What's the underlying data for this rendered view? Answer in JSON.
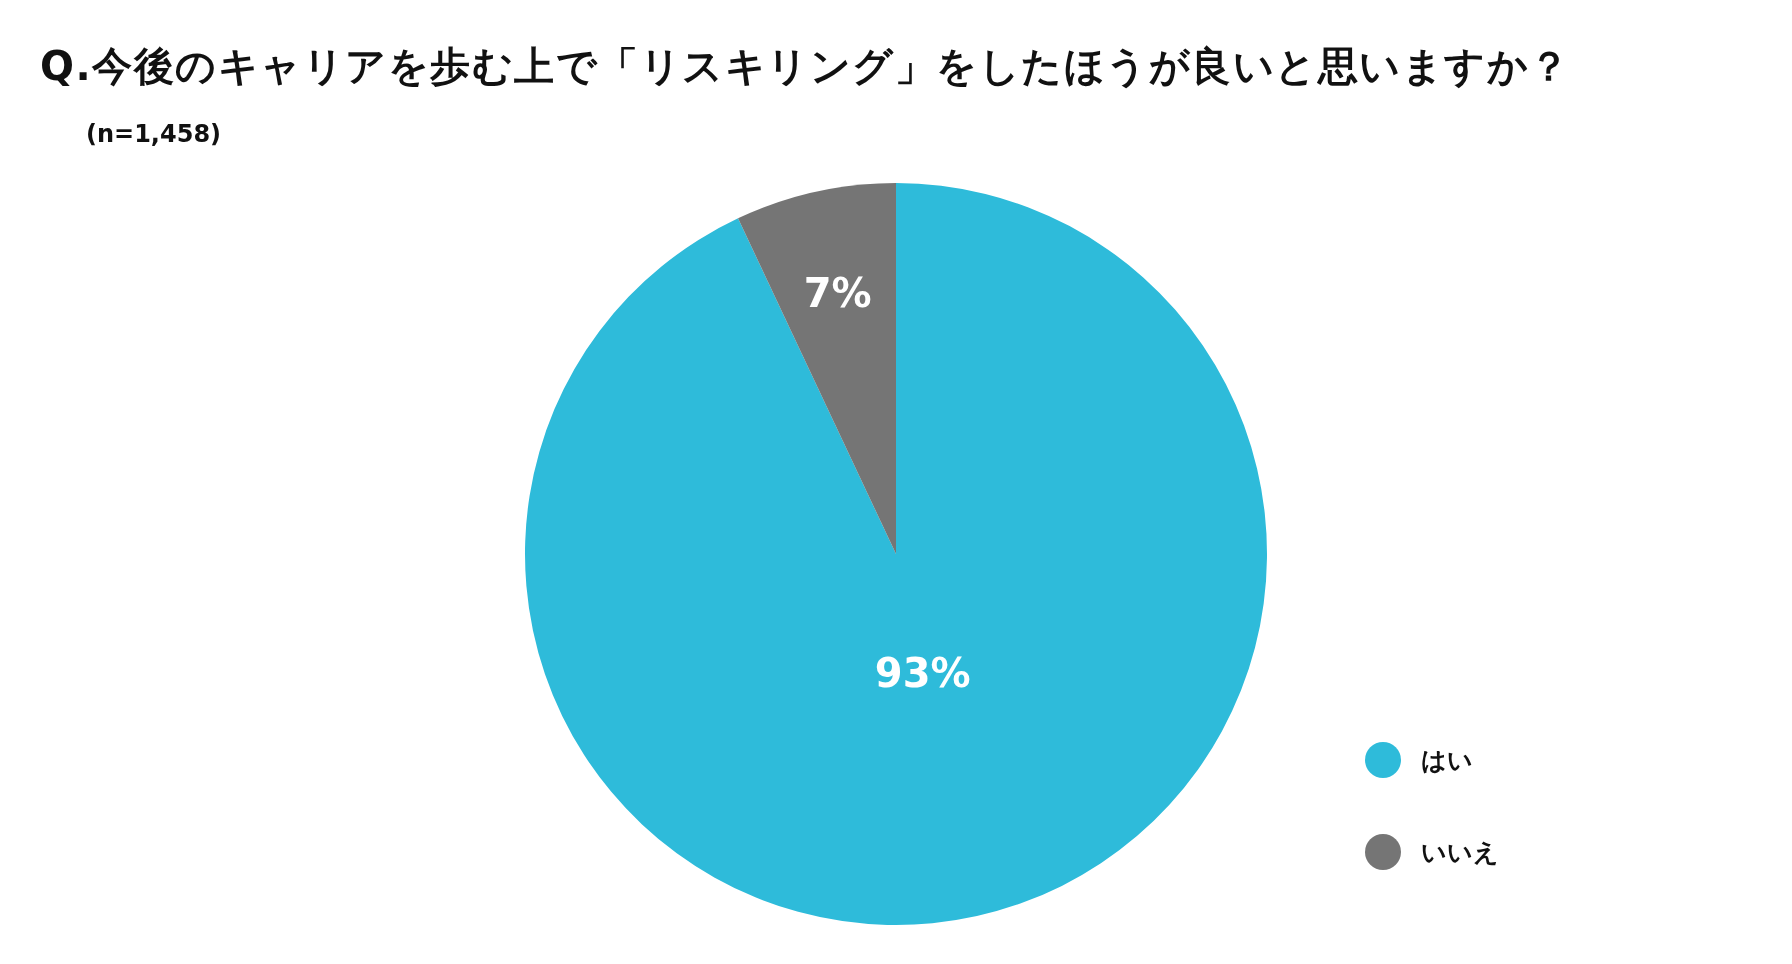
{
  "chart_data": {
    "type": "pie",
    "title": "Q.今後のキャリアを歩む上で「リスキリング」をしたほうが良いと思いますか？",
    "subtitle": "(n=1,458)",
    "categories": [
      "はい",
      "いいえ"
    ],
    "values": [
      93,
      7
    ],
    "value_labels": [
      "93%",
      "7%"
    ],
    "colors": [
      "#2ebbda",
      "#757575"
    ],
    "legend": "bottom right"
  }
}
